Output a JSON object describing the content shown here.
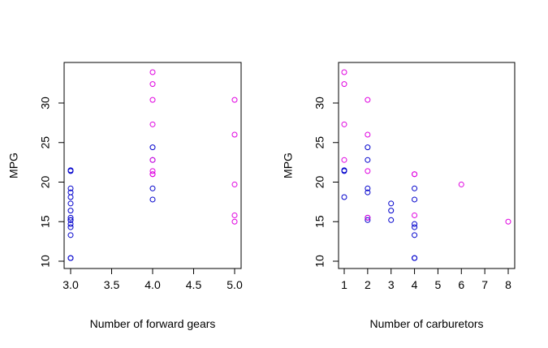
{
  "colors": {
    "series_blue": "#0000CC",
    "series_magenta": "#E000E0",
    "axis": "#000000"
  },
  "chart_data": [
    {
      "type": "scatter",
      "title": "",
      "xlabel": "Number of forward gears",
      "ylabel": "MPG",
      "xlim": [
        3.0,
        5.0
      ],
      "ylim": [
        10,
        34
      ],
      "xticks": [
        3.0,
        3.5,
        4.0,
        4.5,
        5.0
      ],
      "xtick_labels": [
        "3.0",
        "3.5",
        "4.0",
        "4.5",
        "5.0"
      ],
      "yticks": [
        10,
        15,
        20,
        25,
        30
      ],
      "ytick_labels": [
        "10",
        "15",
        "20",
        "25",
        "30"
      ],
      "grid": false,
      "series": [
        {
          "color": "#0000CC",
          "x": [
            3,
            3,
            3,
            3,
            3,
            3,
            3,
            3,
            3,
            3,
            3,
            3,
            3,
            3,
            3,
            4,
            4,
            4,
            4
          ],
          "y": [
            21.4,
            21.5,
            19.2,
            18.7,
            18.1,
            17.3,
            16.4,
            15.5,
            15.2,
            15.2,
            14.7,
            14.3,
            13.3,
            10.4,
            10.4,
            24.4,
            22.8,
            19.2,
            17.8
          ]
        },
        {
          "color": "#E000E0",
          "x": [
            4,
            4,
            4,
            4,
            4,
            4,
            4,
            4,
            5,
            5,
            5,
            5,
            5
          ],
          "y": [
            33.9,
            32.4,
            30.4,
            27.3,
            21.4,
            21.0,
            21.0,
            22.8,
            30.4,
            26.0,
            19.7,
            15.8,
            15.0
          ]
        }
      ]
    },
    {
      "type": "scatter",
      "title": "",
      "xlabel": "Number of carburetors",
      "ylabel": "MPG",
      "xlim": [
        1,
        8
      ],
      "ylim": [
        10,
        34
      ],
      "xticks": [
        1,
        2,
        3,
        4,
        5,
        6,
        7,
        8
      ],
      "xtick_labels": [
        "1",
        "2",
        "3",
        "4",
        "5",
        "6",
        "7",
        "8"
      ],
      "yticks": [
        10,
        15,
        20,
        25,
        30
      ],
      "ytick_labels": [
        "10",
        "15",
        "20",
        "25",
        "30"
      ],
      "grid": false,
      "series": [
        {
          "color": "#0000CC",
          "x": [
            1,
            1,
            1,
            2,
            2,
            2,
            2,
            2,
            2,
            3,
            3,
            3,
            4,
            4,
            4,
            4,
            4,
            4,
            4
          ],
          "y": [
            21.4,
            21.5,
            18.1,
            24.4,
            22.8,
            19.2,
            18.7,
            15.5,
            15.2,
            17.3,
            16.4,
            15.2,
            19.2,
            17.8,
            14.7,
            14.3,
            13.3,
            10.4,
            10.4
          ]
        },
        {
          "color": "#E000E0",
          "x": [
            1,
            1,
            1,
            1,
            2,
            2,
            2,
            2,
            4,
            4,
            4,
            6,
            8
          ],
          "y": [
            33.9,
            32.4,
            27.3,
            22.8,
            30.4,
            26.0,
            21.4,
            15.5,
            21.0,
            21.0,
            15.8,
            19.7,
            15.0
          ]
        }
      ]
    }
  ]
}
